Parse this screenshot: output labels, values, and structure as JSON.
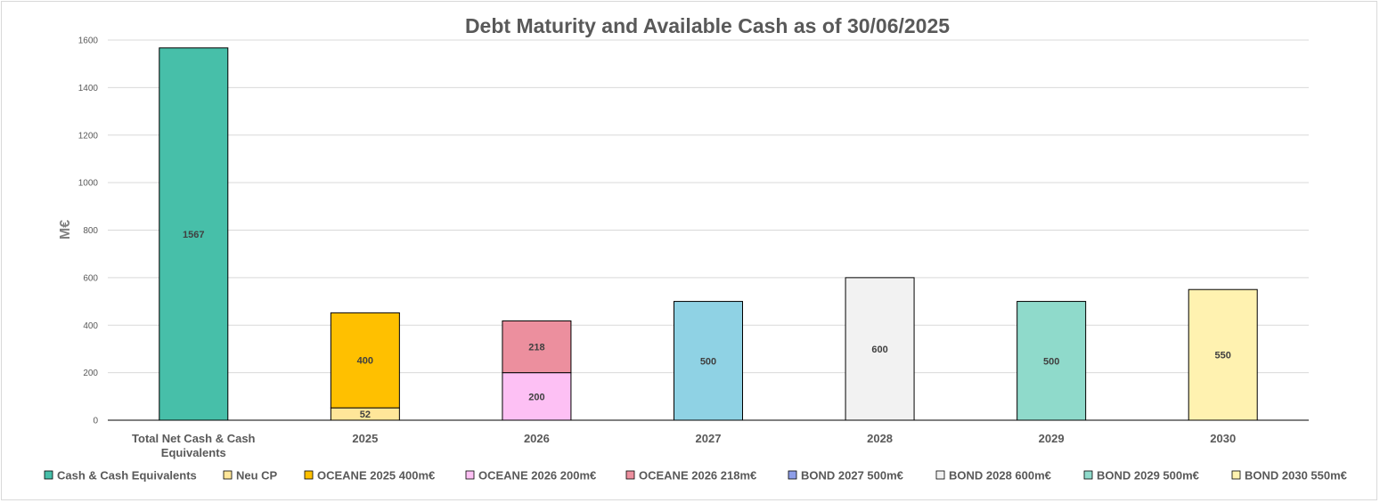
{
  "chart_data": {
    "type": "bar",
    "stacked": true,
    "title": "Debt Maturity and Available Cash as of 30/06/2025",
    "xlabel": "",
    "ylabel": "M€",
    "ylim": [
      0,
      1600
    ],
    "yticks": [
      0,
      200,
      400,
      600,
      800,
      1000,
      1200,
      1400,
      1600
    ],
    "grid": true,
    "legend_position": "bottom",
    "categories": [
      "Total Net Cash & Cash Equivalents",
      "2025",
      "2026",
      "2027",
      "2028",
      "2029",
      "2030"
    ],
    "series": [
      {
        "name": "Cash & Cash Equivalents",
        "color": "#47bfa9",
        "values": [
          1567,
          0,
          0,
          0,
          0,
          0,
          0
        ]
      },
      {
        "name": "Neu CP",
        "color": "#ffe699",
        "values": [
          0,
          52,
          0,
          0,
          0,
          0,
          0
        ]
      },
      {
        "name": "OCEANE 2025 400m€",
        "color": "#ffc000",
        "values": [
          0,
          400,
          0,
          0,
          0,
          0,
          0
        ]
      },
      {
        "name": "OCEANE 2026 200m€",
        "color": "#fdc0f4",
        "values": [
          0,
          0,
          200,
          0,
          0,
          0,
          0
        ]
      },
      {
        "name": "OCEANE 2026 218m€",
        "color": "#ec8f9e",
        "values": [
          0,
          0,
          218,
          0,
          0,
          0,
          0
        ]
      },
      {
        "name": "BOND 2027 500m€",
        "color": "#8fd2e4",
        "legend_color": "#8e9ee8",
        "values": [
          0,
          0,
          0,
          500,
          0,
          0,
          0
        ]
      },
      {
        "name": "BOND 2028 600m€",
        "color": "#f2f2f2",
        "values": [
          0,
          0,
          0,
          0,
          600,
          0,
          0
        ]
      },
      {
        "name": "BOND 2029 500m€",
        "color": "#8fdacb",
        "values": [
          0,
          0,
          0,
          0,
          0,
          500,
          0
        ]
      },
      {
        "name": "BOND 2030 550m€",
        "color": "#fff2b0",
        "values": [
          0,
          0,
          0,
          0,
          0,
          0,
          550
        ]
      }
    ]
  }
}
